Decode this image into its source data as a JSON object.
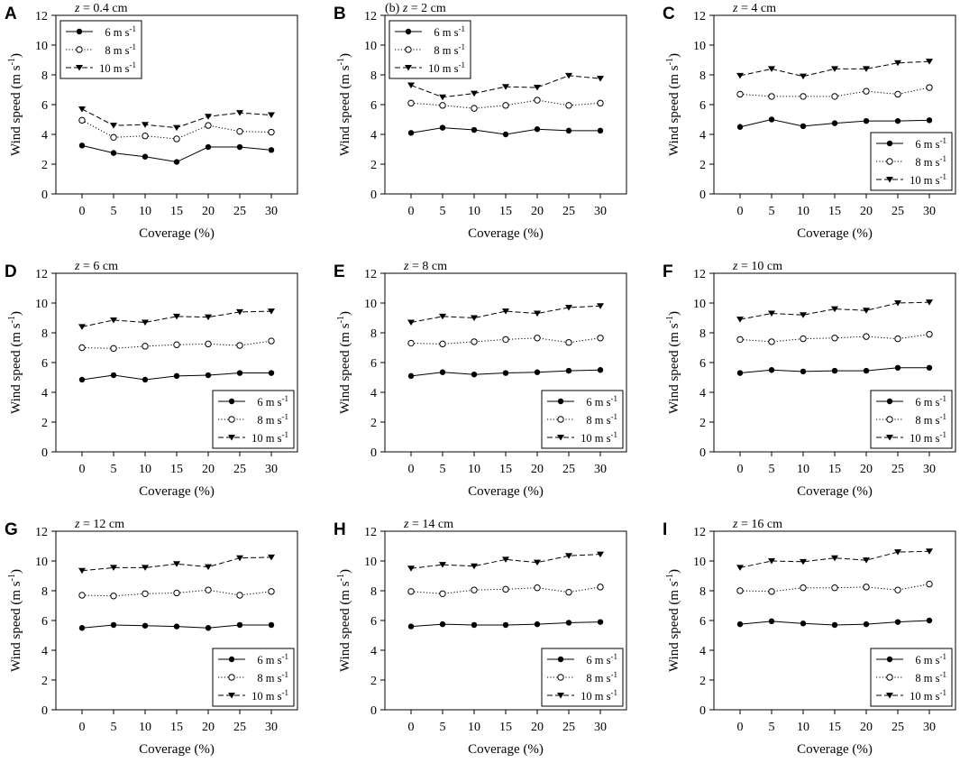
{
  "figure": {
    "series_names": [
      "6 m s-1",
      "8 m s-1",
      "10 m s-1"
    ],
    "legend_labels": [
      {
        "base": "6 m s",
        "sup": "-1"
      },
      {
        "base": "8 m s",
        "sup": "-1"
      },
      {
        "base": "10 m s",
        "sup": "-1"
      }
    ],
    "ylabel_base": "Wind speed (m s",
    "ylabel_sup": "-1",
    "ylabel_end": ")",
    "xlabel": "Coverage (%)",
    "series_colors": {
      "line": "#000000"
    }
  },
  "chart_data": [
    {
      "panel": "A",
      "title_prefix": "",
      "title_var": "z",
      "title_rest": " = 0.4 cm",
      "type": "line",
      "categories": [
        0,
        5,
        10,
        15,
        20,
        25,
        30
      ],
      "ylim": [
        0,
        12
      ],
      "yticks": [
        0,
        2,
        4,
        6,
        8,
        10,
        12
      ],
      "xlabel": "Coverage (%)",
      "legend_position": "top-left",
      "series": [
        {
          "name": "6 m s-1",
          "values": [
            3.25,
            2.75,
            2.5,
            2.15,
            3.15,
            3.15,
            2.95
          ]
        },
        {
          "name": "8 m s-1",
          "values": [
            4.95,
            3.8,
            3.9,
            3.7,
            4.6,
            4.2,
            4.15
          ]
        },
        {
          "name": "10 m s-1",
          "values": [
            5.7,
            4.6,
            4.65,
            4.45,
            5.2,
            5.45,
            5.3
          ]
        }
      ]
    },
    {
      "panel": "B",
      "title_prefix": "(b) ",
      "title_var": "z",
      "title_rest": " = 2 cm",
      "type": "line",
      "categories": [
        0,
        5,
        10,
        15,
        20,
        25,
        30
      ],
      "ylim": [
        0,
        12
      ],
      "yticks": [
        0,
        2,
        4,
        6,
        8,
        10,
        12
      ],
      "xlabel": "Coverage (%)",
      "legend_position": "top-left",
      "series": [
        {
          "name": "6 m s-1",
          "values": [
            4.1,
            4.45,
            4.3,
            4.0,
            4.35,
            4.25,
            4.25
          ]
        },
        {
          "name": "8 m s-1",
          "values": [
            6.1,
            5.95,
            5.75,
            5.95,
            6.3,
            5.95,
            6.1
          ]
        },
        {
          "name": "10 m s-1",
          "values": [
            7.3,
            6.5,
            6.75,
            7.2,
            7.15,
            7.95,
            7.75
          ]
        }
      ]
    },
    {
      "panel": "C",
      "title_prefix": "",
      "title_var": "z",
      "title_rest": " = 4 cm",
      "type": "line",
      "categories": [
        0,
        5,
        10,
        15,
        20,
        25,
        30
      ],
      "ylim": [
        0,
        12
      ],
      "yticks": [
        0,
        2,
        4,
        6,
        8,
        10,
        12
      ],
      "xlabel": "Coverage (%)",
      "legend_position": "bottom-right",
      "series": [
        {
          "name": "6 m s-1",
          "values": [
            4.5,
            5.0,
            4.55,
            4.75,
            4.9,
            4.9,
            4.95
          ]
        },
        {
          "name": "8 m s-1",
          "values": [
            6.7,
            6.55,
            6.55,
            6.55,
            6.9,
            6.7,
            7.15
          ]
        },
        {
          "name": "10 m s-1",
          "values": [
            7.95,
            8.4,
            7.9,
            8.4,
            8.4,
            8.8,
            8.9
          ]
        }
      ]
    },
    {
      "panel": "D",
      "title_prefix": "",
      "title_var": "z",
      "title_rest": " = 6 cm",
      "type": "line",
      "categories": [
        0,
        5,
        10,
        15,
        20,
        25,
        30
      ],
      "ylim": [
        0,
        12
      ],
      "yticks": [
        0,
        2,
        4,
        6,
        8,
        10,
        12
      ],
      "xlabel": "Coverage (%)",
      "legend_position": "bottom-right",
      "series": [
        {
          "name": "6 m s-1",
          "values": [
            4.85,
            5.15,
            4.85,
            5.1,
            5.15,
            5.3,
            5.3
          ]
        },
        {
          "name": "8 m s-1",
          "values": [
            7.0,
            6.95,
            7.1,
            7.2,
            7.25,
            7.15,
            7.45
          ]
        },
        {
          "name": "10 m s-1",
          "values": [
            8.4,
            8.85,
            8.7,
            9.1,
            9.05,
            9.4,
            9.45
          ]
        }
      ]
    },
    {
      "panel": "E",
      "title_prefix": "",
      "title_var": "z",
      "title_rest": " = 8 cm",
      "type": "line",
      "categories": [
        0,
        5,
        10,
        15,
        20,
        25,
        30
      ],
      "ylim": [
        0,
        12
      ],
      "yticks": [
        0,
        2,
        4,
        6,
        8,
        10,
        12
      ],
      "xlabel": "Coverage (%)",
      "legend_position": "bottom-right",
      "series": [
        {
          "name": "6 m s-1",
          "values": [
            5.1,
            5.35,
            5.2,
            5.3,
            5.35,
            5.45,
            5.5
          ]
        },
        {
          "name": "8 m s-1",
          "values": [
            7.3,
            7.25,
            7.4,
            7.55,
            7.65,
            7.35,
            7.65
          ]
        },
        {
          "name": "10 m s-1",
          "values": [
            8.7,
            9.1,
            9.0,
            9.45,
            9.3,
            9.7,
            9.8
          ]
        }
      ]
    },
    {
      "panel": "F",
      "title_prefix": "",
      "title_var": "z",
      "title_rest": " = 10 cm",
      "type": "line",
      "categories": [
        0,
        5,
        10,
        15,
        20,
        25,
        30
      ],
      "ylim": [
        0,
        12
      ],
      "yticks": [
        0,
        2,
        4,
        6,
        8,
        10,
        12
      ],
      "xlabel": "Coverage (%)",
      "legend_position": "bottom-right",
      "series": [
        {
          "name": "6 m s-1",
          "values": [
            5.3,
            5.5,
            5.4,
            5.45,
            5.45,
            5.65,
            5.65
          ]
        },
        {
          "name": "8 m s-1",
          "values": [
            7.55,
            7.4,
            7.6,
            7.65,
            7.75,
            7.6,
            7.9
          ]
        },
        {
          "name": "10 m s-1",
          "values": [
            8.9,
            9.3,
            9.2,
            9.6,
            9.5,
            10.0,
            10.05
          ]
        }
      ]
    },
    {
      "panel": "G",
      "title_prefix": "",
      "title_var": "z",
      "title_rest": " = 12 cm",
      "type": "line",
      "categories": [
        0,
        5,
        10,
        15,
        20,
        25,
        30
      ],
      "ylim": [
        0,
        12
      ],
      "yticks": [
        0,
        2,
        4,
        6,
        8,
        10,
        12
      ],
      "xlabel": "Coverage (%)",
      "legend_position": "bottom-right",
      "series": [
        {
          "name": "6 m s-1",
          "values": [
            5.5,
            5.7,
            5.65,
            5.6,
            5.5,
            5.7,
            5.7
          ]
        },
        {
          "name": "8 m s-1",
          "values": [
            7.7,
            7.65,
            7.8,
            7.85,
            8.05,
            7.7,
            7.95
          ]
        },
        {
          "name": "10 m s-1",
          "values": [
            9.35,
            9.55,
            9.55,
            9.8,
            9.6,
            10.2,
            10.25
          ]
        }
      ]
    },
    {
      "panel": "H",
      "title_prefix": "",
      "title_var": "z",
      "title_rest": " = 14 cm",
      "type": "line",
      "categories": [
        0,
        5,
        10,
        15,
        20,
        25,
        30
      ],
      "ylim": [
        0,
        12
      ],
      "yticks": [
        0,
        2,
        4,
        6,
        8,
        10,
        12
      ],
      "xlabel": "Coverage (%)",
      "legend_position": "bottom-right",
      "series": [
        {
          "name": "6 m s-1",
          "values": [
            5.6,
            5.75,
            5.7,
            5.7,
            5.75,
            5.85,
            5.9
          ]
        },
        {
          "name": "8 m s-1",
          "values": [
            7.95,
            7.8,
            8.05,
            8.1,
            8.2,
            7.9,
            8.25
          ]
        },
        {
          "name": "10 m s-1",
          "values": [
            9.5,
            9.75,
            9.65,
            10.1,
            9.9,
            10.35,
            10.45
          ]
        }
      ]
    },
    {
      "panel": "I",
      "title_prefix": "",
      "title_var": "z",
      "title_rest": " = 16 cm",
      "type": "line",
      "categories": [
        0,
        5,
        10,
        15,
        20,
        25,
        30
      ],
      "ylim": [
        0,
        12
      ],
      "yticks": [
        0,
        2,
        4,
        6,
        8,
        10,
        12
      ],
      "xlabel": "Coverage (%)",
      "legend_position": "bottom-right",
      "series": [
        {
          "name": "6 m s-1",
          "values": [
            5.75,
            5.95,
            5.8,
            5.7,
            5.75,
            5.9,
            6.0
          ]
        },
        {
          "name": "8 m s-1",
          "values": [
            8.0,
            7.95,
            8.2,
            8.2,
            8.25,
            8.05,
            8.45
          ]
        },
        {
          "name": "10 m s-1",
          "values": [
            9.55,
            10.0,
            9.95,
            10.2,
            10.05,
            10.6,
            10.65
          ]
        }
      ]
    }
  ]
}
